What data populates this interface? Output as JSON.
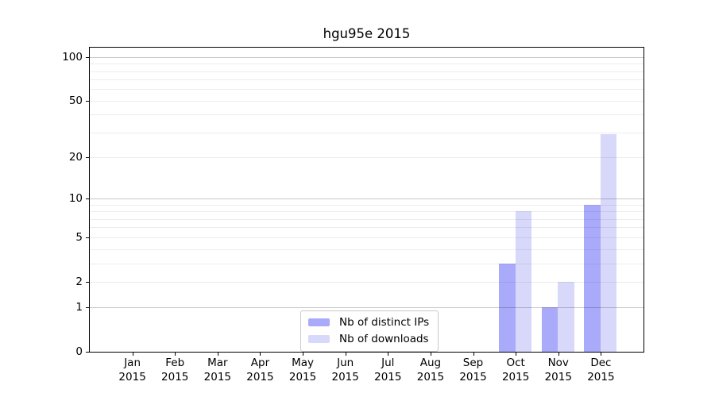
{
  "figure": {
    "title": "hgu95e 2015",
    "background": "#ffffff"
  },
  "legend": {
    "items": [
      {
        "label": "Nb of distinct IPs",
        "color": "#aaaafa"
      },
      {
        "label": "Nb of downloads",
        "color": "#d8d8fa"
      }
    ]
  },
  "chart_data": {
    "type": "bar",
    "title": "hgu95e 2015",
    "categories": [
      {
        "month": "Jan",
        "year": "2015"
      },
      {
        "month": "Feb",
        "year": "2015"
      },
      {
        "month": "Mar",
        "year": "2015"
      },
      {
        "month": "Apr",
        "year": "2015"
      },
      {
        "month": "May",
        "year": "2015"
      },
      {
        "month": "Jun",
        "year": "2015"
      },
      {
        "month": "Jul",
        "year": "2015"
      },
      {
        "month": "Aug",
        "year": "2015"
      },
      {
        "month": "Sep",
        "year": "2015"
      },
      {
        "month": "Oct",
        "year": "2015"
      },
      {
        "month": "Nov",
        "year": "2015"
      },
      {
        "month": "Dec",
        "year": "2015"
      }
    ],
    "series": [
      {
        "name": "Nb of distinct IPs",
        "color": "#aaaafa",
        "values": [
          0,
          0,
          0,
          0,
          0,
          0,
          0,
          0,
          0,
          3,
          1,
          9
        ]
      },
      {
        "name": "Nb of downloads",
        "color": "#d8d8fa",
        "values": [
          0,
          0,
          0,
          0,
          0,
          0,
          0,
          0,
          0,
          8,
          2,
          29
        ]
      }
    ],
    "xlabel": "",
    "ylabel": "",
    "yscale": "log10(value+1)",
    "ylim": [
      0,
      116
    ],
    "yticks": [
      0,
      1,
      2,
      5,
      10,
      20,
      50,
      100
    ],
    "y_gridlines_major": [
      1,
      10,
      100
    ],
    "y_gridlines_minor": [
      2,
      3,
      4,
      5,
      6,
      7,
      8,
      9,
      20,
      30,
      40,
      50,
      60,
      70,
      80,
      90
    ],
    "grid": true,
    "legend_position": "inside lower center"
  },
  "colors": {
    "major_grid": "rgba(0,0,0,0.22)",
    "minor_grid": "rgba(0,0,0,0.07)",
    "spine": "#000000",
    "text": "#000000"
  }
}
